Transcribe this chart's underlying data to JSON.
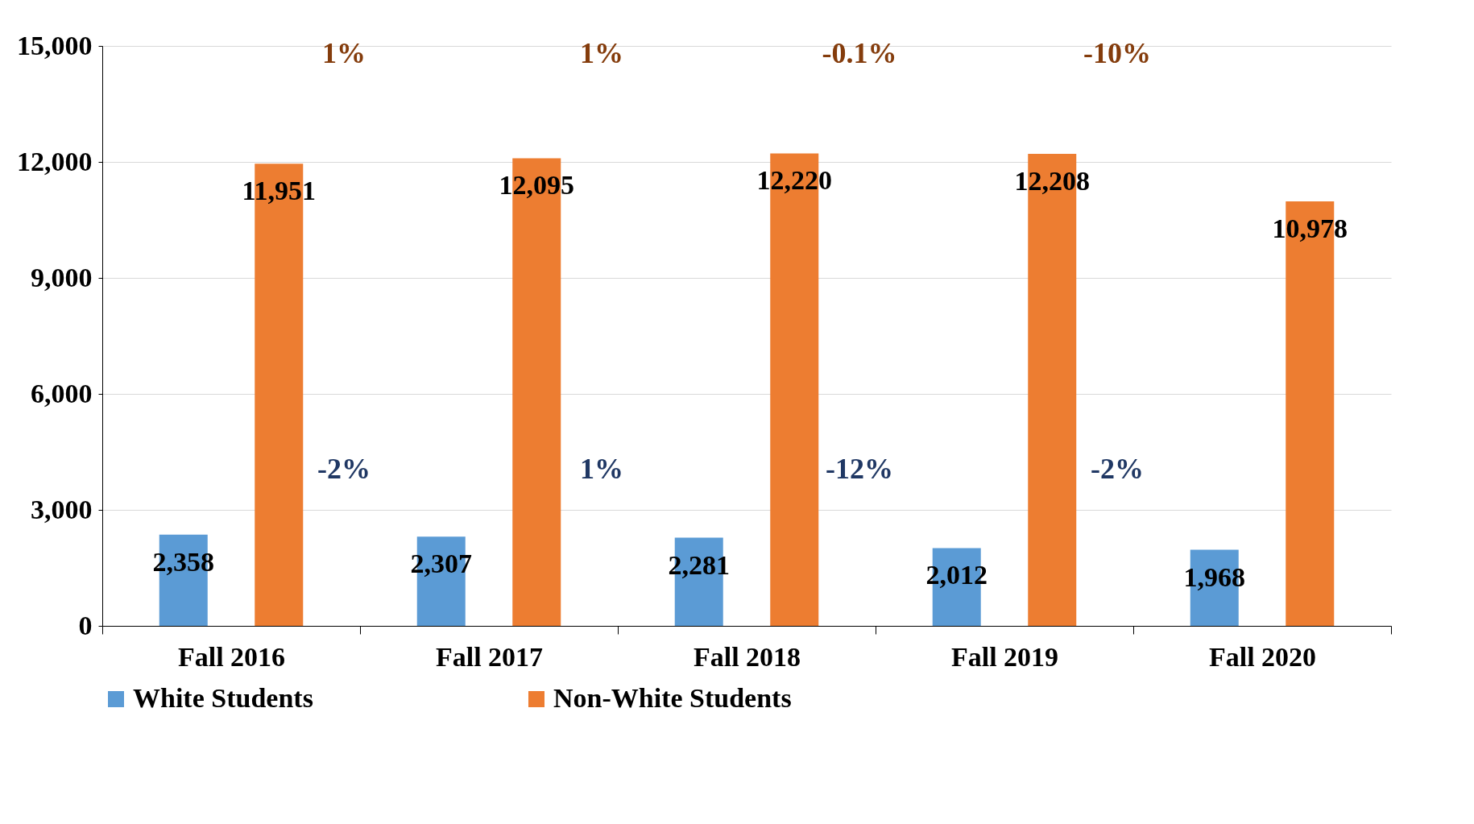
{
  "chart_data": {
    "type": "bar",
    "categories": [
      "Fall 2016",
      "Fall 2017",
      "Fall 2018",
      "Fall 2019",
      "Fall 2020"
    ],
    "series": [
      {
        "name": "White Students",
        "color": "#5b9bd5",
        "values": [
          2358,
          2307,
          2281,
          2012,
          1968
        ],
        "value_labels": [
          "2,358",
          "2,307",
          "2,281",
          "2,012",
          "1,968"
        ]
      },
      {
        "name": "Non-White Students",
        "color": "#ed7d31",
        "values": [
          11951,
          12095,
          12220,
          12208,
          10978
        ],
        "value_labels": [
          "11,951",
          "12,095",
          "12,220",
          "12,208",
          "10,978"
        ]
      }
    ],
    "ylim": [
      0,
      15000
    ],
    "yticks": [
      {
        "value": 0,
        "label": "0"
      },
      {
        "value": 3000,
        "label": "3,000"
      },
      {
        "value": 6000,
        "label": "6,000"
      },
      {
        "value": 9000,
        "label": "9,000"
      },
      {
        "value": 12000,
        "label": "12,000"
      },
      {
        "value": 15000,
        "label": "15,000"
      }
    ],
    "grid": "y",
    "legend": "bottom",
    "annotations": [
      "1%",
      "1%",
      "-0.1%",
      "-10%",
      "-2%",
      "1%",
      "-12%",
      "-2%"
    ]
  }
}
